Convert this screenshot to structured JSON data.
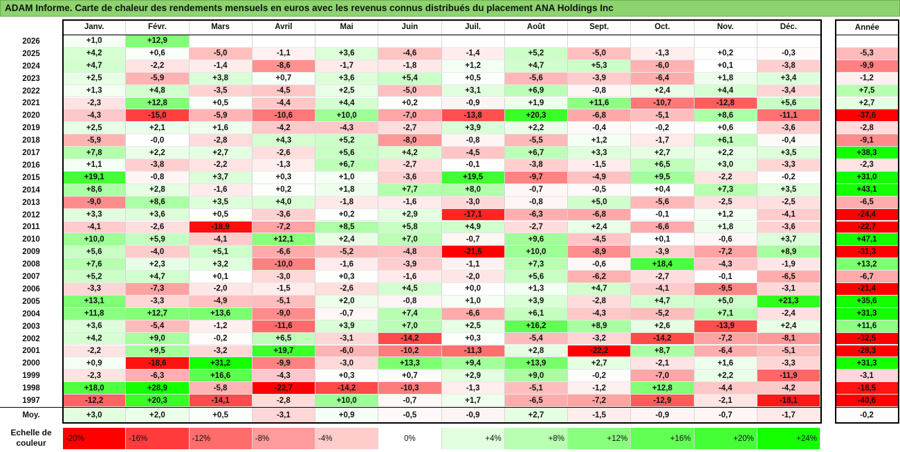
{
  "title": "ADAM Informe. Carte de chaleur des rendements mensuels en euros avec les revenus connus distribués du placement ANA Holdings Inc",
  "chart_data": {
    "type": "heatmap",
    "columns": [
      "Janv.",
      "Févr.",
      "Mars",
      "Avril",
      "Mai",
      "Juin",
      "Juil.",
      "Août",
      "Sept.",
      "Oct.",
      "Nov.",
      "Déc."
    ],
    "year_column_label": "Année",
    "rows": [
      {
        "year": "2026",
        "months": [
          "+1,0",
          "+12,9",
          null,
          null,
          null,
          null,
          null,
          null,
          null,
          null,
          null,
          null
        ],
        "annual": null
      },
      {
        "year": "2025",
        "months": [
          "+4,2",
          "+0,6",
          "-5,0",
          "-1,1",
          "+3,6",
          "-4,6",
          "-1,4",
          "+5,2",
          "-5,0",
          "-1,3",
          "+0,2",
          "-0,3"
        ],
        "annual": "-5,3"
      },
      {
        "year": "2024",
        "months": [
          "+4,7",
          "-2,2",
          "-1,4",
          "-8,6",
          "-1,7",
          "-1,8",
          "+1,2",
          "+4,7",
          "+5,3",
          "-6,0",
          "+0,1",
          "-3,8"
        ],
        "annual": "-9,9"
      },
      {
        "year": "2023",
        "months": [
          "+2,5",
          "-5,9",
          "+3,8",
          "+0,7",
          "+3,6",
          "+5,4",
          "+0,5",
          "-5,6",
          "-3,9",
          "-6,4",
          "+1,8",
          "+3,4"
        ],
        "annual": "-1,2"
      },
      {
        "year": "2022",
        "months": [
          "+1,3",
          "+4,8",
          "-3,5",
          "-4,5",
          "+2,5",
          "-5,0",
          "+3,1",
          "+6,9",
          "-0,8",
          "+2,4",
          "+4,4",
          "-3,4"
        ],
        "annual": "+7,5"
      },
      {
        "year": "2021",
        "months": [
          "-2,3",
          "+12,8",
          "+0,5",
          "-4,4",
          "+4,4",
          "+0,2",
          "-0,9",
          "+1,9",
          "+11,6",
          "-10,7",
          "-12,8",
          "+5,6"
        ],
        "annual": "+2,7"
      },
      {
        "year": "2020",
        "months": [
          "-4,3",
          "-15,0",
          "-5,9",
          "-10,6",
          "+10,0",
          "-7,0",
          "-13,8",
          "+20,3",
          "-6,8",
          "-5,1",
          "+8,6",
          "-11,1"
        ],
        "annual": "-37,6"
      },
      {
        "year": "2019",
        "months": [
          "+2,5",
          "+2,1",
          "+1,6",
          "-4,2",
          "-4,3",
          "-2,7",
          "+3,9",
          "+2,2",
          "-0,4",
          "-0,2",
          "+0,6",
          "-3,6"
        ],
        "annual": "-2,8"
      },
      {
        "year": "2018",
        "months": [
          "-5,9",
          "-0,0",
          "-2,8",
          "+4,3",
          "+5,2",
          "-8,0",
          "-0,8",
          "-5,5",
          "+1,2",
          "-1,7",
          "+6,1",
          "-0,4"
        ],
        "annual": "-9,1"
      },
      {
        "year": "2017",
        "months": [
          "+7,8",
          "+2,2",
          "+2,7",
          "-2,6",
          "+5,6",
          "+4,2",
          "-4,5",
          "+6,7",
          "+3,3",
          "+2,7",
          "+2,2",
          "+3,5"
        ],
        "annual": "+38,3"
      },
      {
        "year": "2016",
        "months": [
          "+1,1",
          "-3,8",
          "-2,2",
          "-1,3",
          "+6,7",
          "-2,7",
          "-0,1",
          "-3,8",
          "-1,5",
          "+6,5",
          "+3,0",
          "-3,3"
        ],
        "annual": "-2,3"
      },
      {
        "year": "2015",
        "months": [
          "+19,1",
          "-0,8",
          "+3,7",
          "+0,3",
          "+1,0",
          "-3,6",
          "+19,5",
          "-9,7",
          "-4,9",
          "+9,5",
          "-2,2",
          "-0,2"
        ],
        "annual": "+31,0"
      },
      {
        "year": "2014",
        "months": [
          "+8,6",
          "+2,8",
          "-1,6",
          "+0,2",
          "+1,8",
          "+7,7",
          "+8,0",
          "-0,7",
          "-0,5",
          "+0,4",
          "+7,3",
          "+3,5"
        ],
        "annual": "+43,1"
      },
      {
        "year": "2013",
        "months": [
          "-9,0",
          "+8,6",
          "+3,5",
          "+4,0",
          "-1,8",
          "-1,6",
          "-3,0",
          "-0,8",
          "+5,0",
          "-5,6",
          "-2,5",
          "-2,5"
        ],
        "annual": "-6,5"
      },
      {
        "year": "2012",
        "months": [
          "+3,3",
          "+3,6",
          "+0,5",
          "-3,6",
          "+0,2",
          "+2,9",
          "-17,1",
          "-6,3",
          "-6,8",
          "-0,1",
          "+1,2",
          "-4,1"
        ],
        "annual": "-24,4"
      },
      {
        "year": "2011",
        "months": [
          "-4,1",
          "-2,6",
          "-18,9",
          "-7,2",
          "+8,5",
          "+5,8",
          "+4,9",
          "-2,7",
          "+2,4",
          "-6,6",
          "+1,8",
          "-3,6"
        ],
        "annual": "-22,7"
      },
      {
        "year": "2010",
        "months": [
          "+10,0",
          "+5,9",
          "-4,1",
          "+12,1",
          "+2,4",
          "+7,0",
          "-0,7",
          "+9,6",
          "-4,5",
          "+0,1",
          "-0,6",
          "+3,7"
        ],
        "annual": "+47,1"
      },
      {
        "year": "2009",
        "months": [
          "+5,6",
          "-4,0",
          "+5,1",
          "-6,6",
          "-5,2",
          "-4,8",
          "-21,5",
          "+10,0",
          "-8,9",
          "-3,9",
          "-7,2",
          "+8,9"
        ],
        "annual": "-31,3"
      },
      {
        "year": "2008",
        "months": [
          "+7,6",
          "+2,3",
          "+3,2",
          "-10,0",
          "-1,6",
          "-3,9",
          "-1,1",
          "+7,3",
          "-0,6",
          "+18,4",
          "-4,3",
          "-1,9"
        ],
        "annual": "+13,2"
      },
      {
        "year": "2007",
        "months": [
          "+5,2",
          "+4,7",
          "+0,1",
          "-3,0",
          "+0,3",
          "-1,6",
          "-2,0",
          "+5,6",
          "-6,2",
          "-2,7",
          "-0,1",
          "-6,5"
        ],
        "annual": "-6,7"
      },
      {
        "year": "2006",
        "months": [
          "-3,3",
          "-7,3",
          "-2,0",
          "-1,5",
          "-2,6",
          "+4,5",
          "+0,0",
          "+1,3",
          "+4,7",
          "-4,1",
          "-9,5",
          "-3,1"
        ],
        "annual": "-21,4"
      },
      {
        "year": "2005",
        "months": [
          "+13,1",
          "-3,3",
          "-4,9",
          "-5,1",
          "+2,0",
          "-0,8",
          "+1,0",
          "+3,9",
          "-2,8",
          "+4,7",
          "+5,0",
          "+21,3"
        ],
        "annual": "+35,6"
      },
      {
        "year": "2004",
        "months": [
          "+11,8",
          "+12,7",
          "+13,6",
          "-9,0",
          "-0,7",
          "+7,4",
          "-6,6",
          "+6,1",
          "-4,3",
          "-5,2",
          "+7,1",
          "-2,4"
        ],
        "annual": "+31,3"
      },
      {
        "year": "2003",
        "months": [
          "+3,6",
          "-5,4",
          "-1,2",
          "-11,6",
          "+3,9",
          "+7,0",
          "+2,5",
          "+16,2",
          "+8,9",
          "+2,6",
          "-13,9",
          "+2,4"
        ],
        "annual": "+11,6"
      },
      {
        "year": "2002",
        "months": [
          "+4,2",
          "+9,0",
          "-0,2",
          "+6,5",
          "-3,1",
          "-14,2",
          "+0,3",
          "-5,4",
          "-3,2",
          "-14,2",
          "-7,2",
          "-8,1"
        ],
        "annual": "-32,5"
      },
      {
        "year": "2001",
        "months": [
          "-2,2",
          "+9,5",
          "-3,2",
          "+19,7",
          "-6,0",
          "-10,2",
          "-11,3",
          "+2,8",
          "-22,2",
          "+8,7",
          "-6,4",
          "-5,1"
        ],
        "annual": "-28,3"
      },
      {
        "year": "2000",
        "months": [
          "+0,9",
          "-18,6",
          "+31,2",
          "-9,9",
          "-3,0",
          "+13,3",
          "+9,4",
          "+13,9",
          "+2,7",
          "-2,1",
          "+1,6",
          "-3,3"
        ],
        "annual": "+31,3"
      },
      {
        "year": "1999",
        "months": [
          "-2,3",
          "-6,3",
          "+16,6",
          "-4,3",
          "+0,3",
          "+0,7",
          "+2,9",
          "+9,0",
          "-0,2",
          "-7,0",
          "+2,2",
          "-11,9"
        ],
        "annual": "-3,1"
      },
      {
        "year": "1998",
        "months": [
          "+18,0",
          "+28,9",
          "-5,8",
          "-22,7",
          "-14,2",
          "-10,3",
          "-1,3",
          "-5,1",
          "-1,2",
          "+12,8",
          "-4,4",
          "-4,2"
        ],
        "annual": "-18,5"
      },
      {
        "year": "1997",
        "months": [
          "-12,2",
          "+20,3",
          "-14,1",
          "-2,8",
          "+10,0",
          "-0,7",
          "+1,7",
          "-6,5",
          "-7,2",
          "-12,9",
          "-2,1",
          "-18,1"
        ],
        "annual": "-40,6"
      }
    ],
    "average": {
      "label": "Moy.",
      "months": [
        "+3,0",
        "+2,0",
        "+0,5",
        "-3,1",
        "+0,9",
        "-0,5",
        "-0,9",
        "+2,7",
        "-1,5",
        "-0,9",
        "-0,7",
        "-1,7"
      ],
      "annual": "-0,2"
    },
    "color_scale": {
      "label_line1": "Echelle de",
      "label_line2": "couleur",
      "stops": [
        {
          "label": "-20%",
          "value": -20,
          "color": "#ff0000"
        },
        {
          "label": "-16%",
          "value": -16,
          "color": "#ff3b3b"
        },
        {
          "label": "-12%",
          "value": -12,
          "color": "#ff6c6c"
        },
        {
          "label": "-8%",
          "value": -8,
          "color": "#ff9b9b"
        },
        {
          "label": "-4%",
          "value": -4,
          "color": "#ffcccc"
        },
        {
          "label": "0%",
          "value": 0,
          "color": "#ffffff"
        },
        {
          "label": "+4%",
          "value": 4,
          "color": "#e2ffe0"
        },
        {
          "label": "+8%",
          "value": 8,
          "color": "#b8ffb1"
        },
        {
          "label": "+12%",
          "value": 12,
          "color": "#89ff7e"
        },
        {
          "label": "+16%",
          "value": 16,
          "color": "#62ff55"
        },
        {
          "label": "+20%",
          "value": 20,
          "color": "#45ff36"
        },
        {
          "label": "+24%",
          "value": 24,
          "color": "#14ff00"
        }
      ]
    },
    "colors": {
      "title_bar": "#8dd46f",
      "negative_max": "#ff0000",
      "positive_max": "#14ff00",
      "neutral": "#ffffff"
    }
  }
}
